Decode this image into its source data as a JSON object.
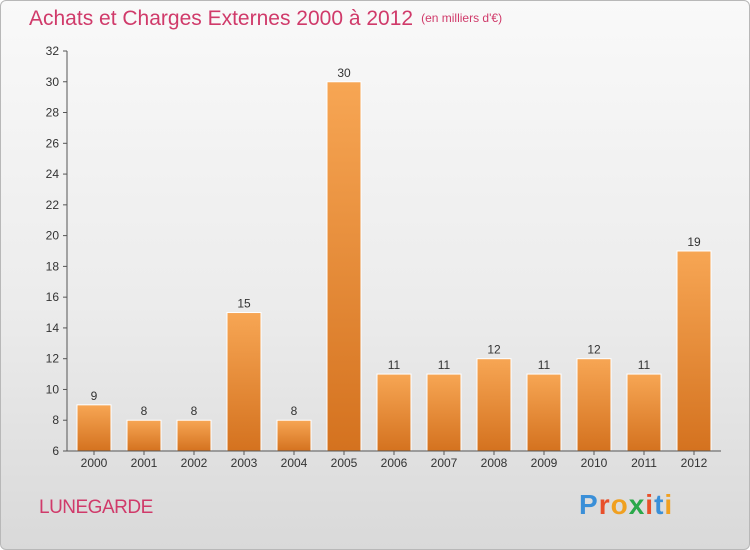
{
  "header": {
    "title": "Achats et Charges Externes 2000 à 2012",
    "unit": "(en milliers d'€)"
  },
  "footer": {
    "commune": "LUNEGARDE",
    "logo_text": "Proxiti",
    "logo_colors": [
      "#3a8fd8",
      "#e84f2a",
      "#f0a020",
      "#2aa84a",
      "#e84f2a",
      "#3a8fd8",
      "#f0a020"
    ]
  },
  "colors": {
    "title": "#d03a6a",
    "bar_light": "#f7a654",
    "bar_dark": "#d47220",
    "axis": "#555555",
    "grid": "#c8c8c8"
  },
  "chart_data": {
    "type": "bar",
    "title": "Achats et Charges Externes 2000 à 2012",
    "subtitle": "(en milliers d'€)",
    "categories": [
      "2000",
      "2001",
      "2002",
      "2003",
      "2004",
      "2005",
      "2006",
      "2007",
      "2008",
      "2009",
      "2010",
      "2011",
      "2012"
    ],
    "values": [
      9,
      8,
      8,
      15,
      8,
      30,
      11,
      11,
      12,
      11,
      12,
      11,
      19
    ],
    "ylim": [
      6,
      32
    ],
    "yticks": [
      6,
      8,
      10,
      12,
      14,
      16,
      18,
      20,
      22,
      24,
      26,
      28,
      30,
      32
    ],
    "grid": false,
    "legend": "none"
  }
}
